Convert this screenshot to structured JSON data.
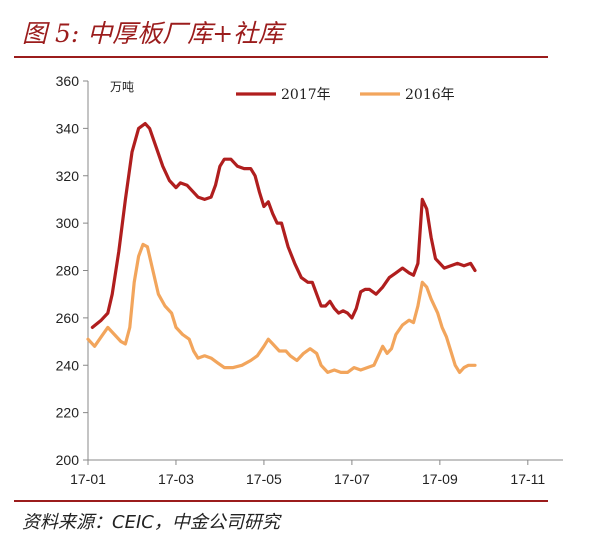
{
  "header": {
    "title": "图 5:  中厚板厂库+社库"
  },
  "footer": {
    "source": "资料来源：CEIC，中金公司研究"
  },
  "chart_data": {
    "type": "line",
    "unit_label": "万吨",
    "ylim": [
      200,
      360
    ],
    "yticks": [
      200,
      220,
      240,
      260,
      280,
      300,
      320,
      340,
      360
    ],
    "xlim": [
      0,
      10.8
    ],
    "xticks": [
      {
        "label": "17-01",
        "pos": 0
      },
      {
        "label": "17-03",
        "pos": 2
      },
      {
        "label": "17-05",
        "pos": 4
      },
      {
        "label": "17-07",
        "pos": 6
      },
      {
        "label": "17-09",
        "pos": 8
      },
      {
        "label": "17-11",
        "pos": 10
      }
    ],
    "legend_position": "top-right",
    "series": [
      {
        "name": "2017年",
        "color": "#b01e1e",
        "points": [
          [
            0.1,
            256
          ],
          [
            0.3,
            259
          ],
          [
            0.45,
            262
          ],
          [
            0.55,
            270
          ],
          [
            0.7,
            288
          ],
          [
            0.85,
            310
          ],
          [
            1.0,
            330
          ],
          [
            1.15,
            340
          ],
          [
            1.3,
            342
          ],
          [
            1.4,
            340
          ],
          [
            1.55,
            332
          ],
          [
            1.7,
            324
          ],
          [
            1.85,
            318
          ],
          [
            2.0,
            315
          ],
          [
            2.1,
            317
          ],
          [
            2.25,
            316
          ],
          [
            2.4,
            313
          ],
          [
            2.5,
            311
          ],
          [
            2.65,
            310
          ],
          [
            2.8,
            311
          ],
          [
            2.9,
            316
          ],
          [
            3.0,
            324
          ],
          [
            3.1,
            327
          ],
          [
            3.25,
            327
          ],
          [
            3.4,
            324
          ],
          [
            3.55,
            323
          ],
          [
            3.7,
            323
          ],
          [
            3.8,
            320
          ],
          [
            3.9,
            313
          ],
          [
            4.0,
            307
          ],
          [
            4.1,
            309
          ],
          [
            4.2,
            304
          ],
          [
            4.3,
            300
          ],
          [
            4.4,
            300
          ],
          [
            4.55,
            290
          ],
          [
            4.7,
            283
          ],
          [
            4.85,
            277
          ],
          [
            5.0,
            275
          ],
          [
            5.1,
            275
          ],
          [
            5.2,
            270
          ],
          [
            5.3,
            265
          ],
          [
            5.4,
            265
          ],
          [
            5.5,
            267
          ],
          [
            5.6,
            264
          ],
          [
            5.7,
            262
          ],
          [
            5.8,
            263
          ],
          [
            5.9,
            262
          ],
          [
            6.0,
            260
          ],
          [
            6.1,
            264
          ],
          [
            6.2,
            271
          ],
          [
            6.3,
            272
          ],
          [
            6.4,
            272
          ],
          [
            6.55,
            270
          ],
          [
            6.7,
            273
          ],
          [
            6.85,
            277
          ],
          [
            7.0,
            279
          ],
          [
            7.15,
            281
          ],
          [
            7.3,
            279
          ],
          [
            7.4,
            278
          ],
          [
            7.5,
            283
          ],
          [
            7.6,
            310
          ],
          [
            7.7,
            306
          ],
          [
            7.8,
            294
          ],
          [
            7.9,
            285
          ],
          [
            8.0,
            283
          ],
          [
            8.1,
            281
          ],
          [
            8.25,
            282
          ],
          [
            8.4,
            283
          ],
          [
            8.55,
            282
          ],
          [
            8.7,
            283
          ],
          [
            8.8,
            280
          ]
        ]
      },
      {
        "name": "2016年",
        "color": "#f2a55c",
        "points": [
          [
            0.0,
            251
          ],
          [
            0.15,
            248
          ],
          [
            0.3,
            252
          ],
          [
            0.45,
            256
          ],
          [
            0.6,
            253
          ],
          [
            0.75,
            250
          ],
          [
            0.85,
            249
          ],
          [
            0.95,
            256
          ],
          [
            1.05,
            275
          ],
          [
            1.15,
            286
          ],
          [
            1.25,
            291
          ],
          [
            1.35,
            290
          ],
          [
            1.45,
            282
          ],
          [
            1.6,
            270
          ],
          [
            1.75,
            265
          ],
          [
            1.9,
            262
          ],
          [
            2.0,
            256
          ],
          [
            2.15,
            253
          ],
          [
            2.3,
            251
          ],
          [
            2.4,
            246
          ],
          [
            2.5,
            243
          ],
          [
            2.65,
            244
          ],
          [
            2.8,
            243
          ],
          [
            2.95,
            241
          ],
          [
            3.1,
            239
          ],
          [
            3.3,
            239
          ],
          [
            3.5,
            240
          ],
          [
            3.7,
            242
          ],
          [
            3.85,
            244
          ],
          [
            4.0,
            248
          ],
          [
            4.1,
            251
          ],
          [
            4.2,
            249
          ],
          [
            4.35,
            246
          ],
          [
            4.5,
            246
          ],
          [
            4.6,
            244
          ],
          [
            4.75,
            242
          ],
          [
            4.9,
            245
          ],
          [
            5.05,
            247
          ],
          [
            5.2,
            245
          ],
          [
            5.3,
            240
          ],
          [
            5.45,
            237
          ],
          [
            5.6,
            238
          ],
          [
            5.75,
            237
          ],
          [
            5.9,
            237
          ],
          [
            6.05,
            239
          ],
          [
            6.2,
            238
          ],
          [
            6.35,
            239
          ],
          [
            6.5,
            240
          ],
          [
            6.6,
            244
          ],
          [
            6.7,
            248
          ],
          [
            6.8,
            245
          ],
          [
            6.9,
            247
          ],
          [
            7.0,
            253
          ],
          [
            7.15,
            257
          ],
          [
            7.3,
            259
          ],
          [
            7.4,
            258
          ],
          [
            7.5,
            265
          ],
          [
            7.6,
            275
          ],
          [
            7.7,
            273
          ],
          [
            7.8,
            268
          ],
          [
            7.95,
            262
          ],
          [
            8.05,
            256
          ],
          [
            8.15,
            252
          ],
          [
            8.25,
            246
          ],
          [
            8.35,
            240
          ],
          [
            8.45,
            237
          ],
          [
            8.55,
            239
          ],
          [
            8.65,
            240
          ],
          [
            8.8,
            240
          ]
        ]
      }
    ]
  }
}
